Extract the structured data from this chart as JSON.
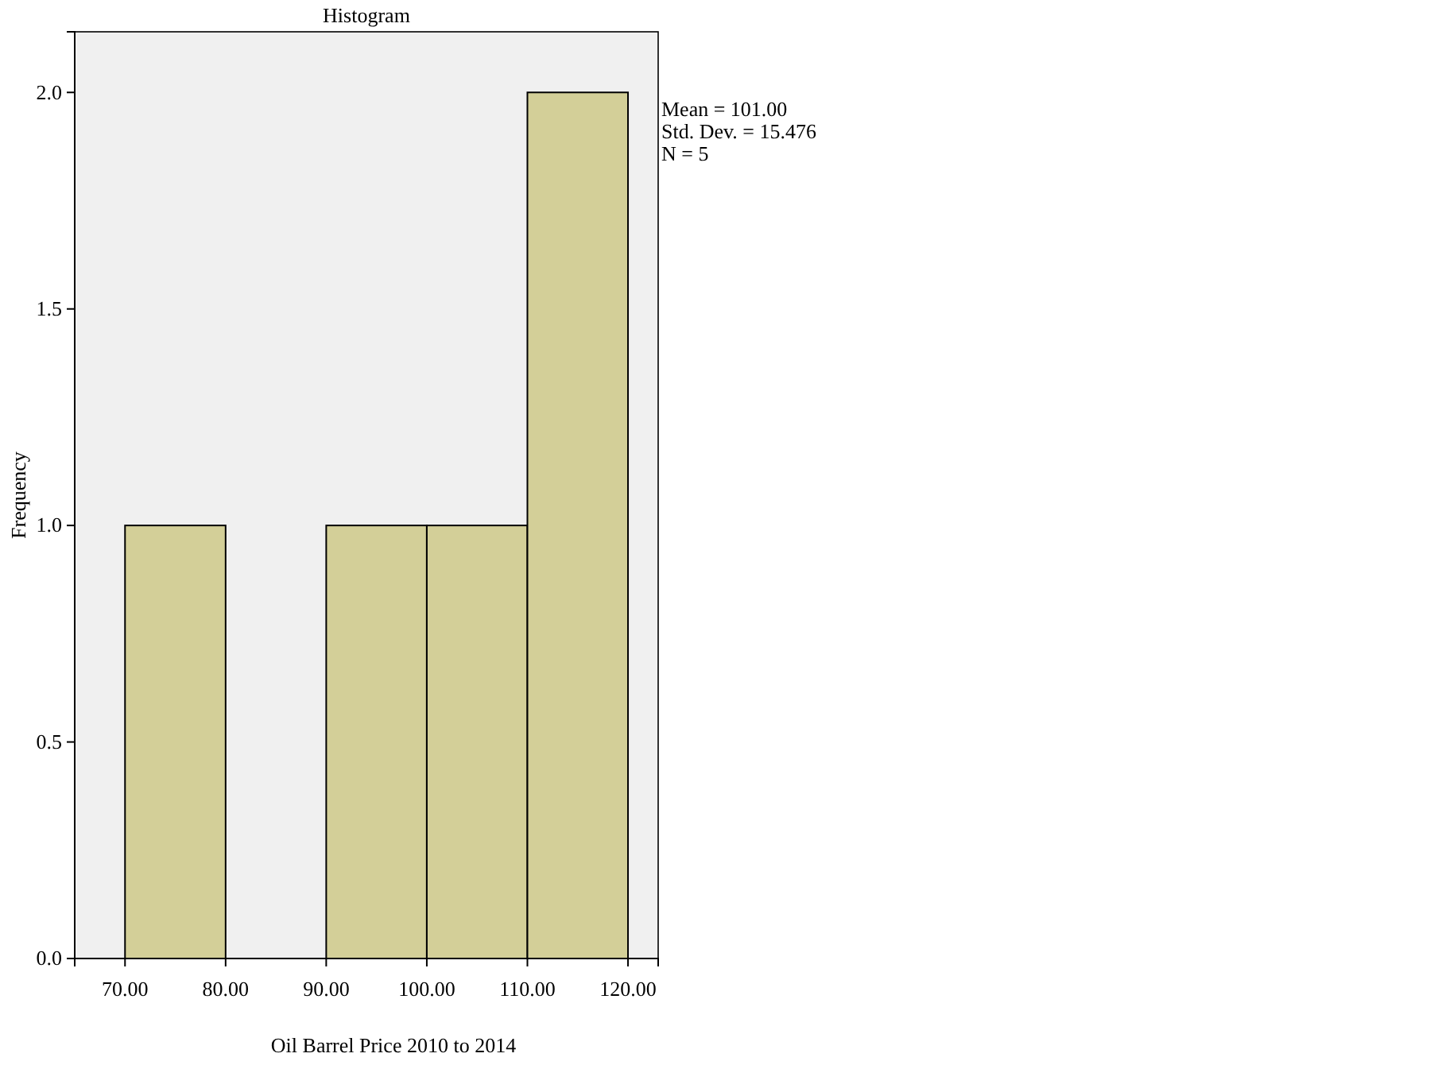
{
  "chart_data": {
    "type": "histogram",
    "title": "Histogram",
    "xlabel": "Oil Barrel Price 2010 to 2014",
    "ylabel": "Frequency",
    "bins": [
      70,
      80,
      90,
      100,
      110,
      120
    ],
    "values": [
      1,
      0,
      1,
      1,
      2
    ],
    "color": "#d3cf98",
    "xlim": [
      65,
      123
    ],
    "xticks": [
      {
        "value": 70,
        "label": "70.00"
      },
      {
        "value": 80,
        "label": "80.00"
      },
      {
        "value": 90,
        "label": "90.00"
      },
      {
        "value": 100,
        "label": "100.00"
      },
      {
        "value": 110,
        "label": "110.00"
      },
      {
        "value": 120,
        "label": "120.00"
      }
    ],
    "ylim": [
      0,
      2.14
    ],
    "yticks": [
      {
        "value": 0,
        "label": "0.0"
      },
      {
        "value": 0.5,
        "label": "0.5"
      },
      {
        "value": 1,
        "label": "1.0"
      },
      {
        "value": 1.5,
        "label": "1.5"
      },
      {
        "value": 2,
        "label": "2.0"
      }
    ],
    "annotations": [
      "Mean = 101.00",
      "Std. Dev. = 15.476",
      "N = 5"
    ],
    "grid": false
  }
}
